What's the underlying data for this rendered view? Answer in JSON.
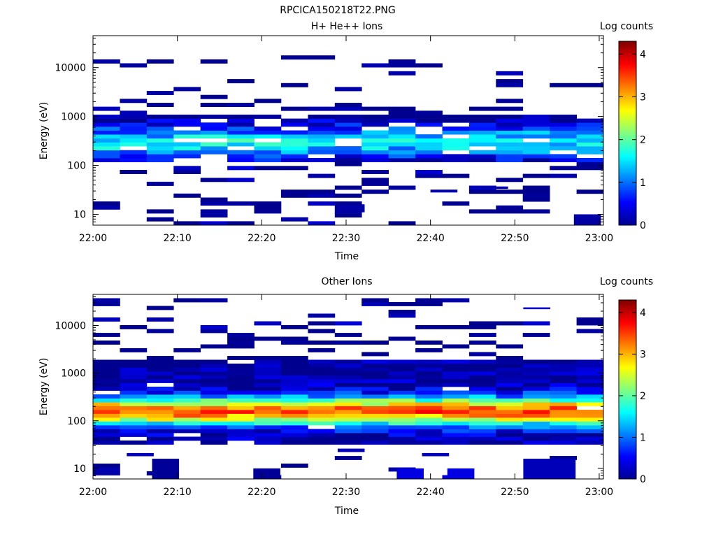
{
  "figure_title": "RPCICA150218T22.PNG",
  "colormap": [
    "#00008f",
    "#0000ff",
    "#0080ff",
    "#00ffff",
    "#80ff80",
    "#ffff00",
    "#ff8000",
    "#ff0000",
    "#800000"
  ],
  "chart_data": [
    {
      "type": "heatmap",
      "title": "H+ He++ Ions",
      "xlabel": "Time",
      "ylabel": "Energy (eV)",
      "colorbar_label": "Log counts",
      "y_scale": "log",
      "xlim": [
        "22:00",
        "23:00"
      ],
      "ylim": [
        6,
        45000
      ],
      "x_ticks": [
        "22:00",
        "22:10",
        "22:20",
        "22:30",
        "22:40",
        "22:50",
        "23:00"
      ],
      "y_ticks": [
        "10",
        "100",
        "1000",
        "10000"
      ],
      "colorbar_ticks": [
        "0",
        "1",
        "2",
        "3",
        "4"
      ],
      "clim": [
        0,
        4.3
      ],
      "seed": 7,
      "profile": {
        "peak": 1.6,
        "core_lo": 120,
        "core_hi": 1100,
        "center": 300,
        "fill_core": 0.85,
        "fill_high": 0.22,
        "fill_low": 0.18
      },
      "extra_blocks": [
        {
          "t": 29,
          "e_lo": 11,
          "e_hi": 16,
          "v": 0.1
        },
        {
          "t": 57,
          "e_lo": 6,
          "e_hi": 10,
          "v": 0.1
        },
        {
          "t": 40,
          "e_lo": 28,
          "e_hi": 32,
          "v": 0.15
        },
        {
          "t": 46,
          "e_lo": 33,
          "e_hi": 37,
          "v": 0.15
        }
      ]
    },
    {
      "type": "heatmap",
      "title": "Other Ions",
      "xlabel": "Time",
      "ylabel": "Energy (eV)",
      "colorbar_label": "Log counts",
      "y_scale": "log",
      "xlim": [
        "22:00",
        "23:00"
      ],
      "ylim": [
        6,
        45000
      ],
      "x_ticks": [
        "22:00",
        "22:10",
        "22:20",
        "22:30",
        "22:40",
        "22:50",
        "23:00"
      ],
      "y_ticks": [
        "10",
        "100",
        "1000",
        "10000"
      ],
      "colorbar_ticks": [
        "0",
        "1",
        "2",
        "3",
        "4"
      ],
      "clim": [
        0,
        4.3
      ],
      "seed": 19,
      "profile": {
        "peak": 3.4,
        "core_lo": 30,
        "core_hi": 1800,
        "center": 160,
        "fill_core": 0.97,
        "fill_high": 0.35,
        "fill_low": 0.05
      },
      "extra_blocks": [
        {
          "t": 7,
          "e_lo": 6,
          "e_hi": 16,
          "v": 0.05
        },
        {
          "t": 19,
          "e_lo": 6,
          "e_hi": 10,
          "v": 0.05
        },
        {
          "t": 36,
          "e_lo": 6,
          "e_hi": 10,
          "v": 0.4
        },
        {
          "t": 42,
          "e_lo": 6,
          "e_hi": 10,
          "v": 0.4
        },
        {
          "t": 51,
          "e_lo": 6,
          "e_hi": 16,
          "v": 0.2
        },
        {
          "t": 54,
          "e_lo": 6,
          "e_hi": 16,
          "v": 0.2
        },
        {
          "t": 51,
          "e_lo": 22000,
          "e_hi": 24000,
          "v": 0.3
        },
        {
          "t": 4,
          "e_lo": 18,
          "e_hi": 21,
          "v": 0.2
        },
        {
          "t": 29,
          "e_lo": 22,
          "e_hi": 26,
          "v": 0.2
        },
        {
          "t": 39,
          "e_lo": 18,
          "e_hi": 21,
          "v": 0.2
        }
      ]
    }
  ]
}
